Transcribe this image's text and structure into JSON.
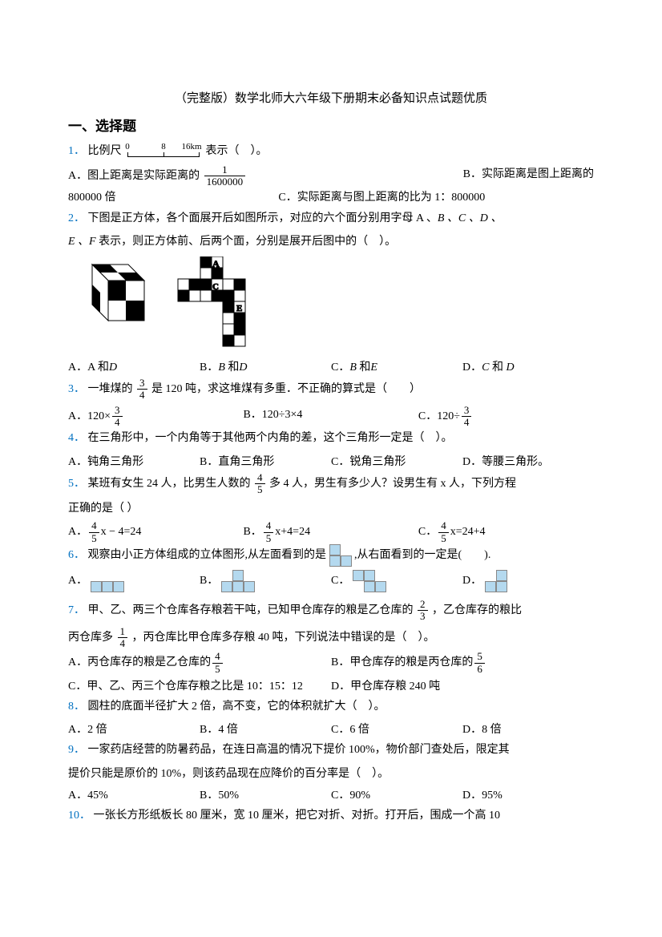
{
  "title": "（完整版）数学北师大六年级下册期末必备知识点试题优质",
  "sectionHeader": "一、选择题",
  "colors": {
    "qnum": "#0070c0",
    "text": "#000000",
    "cellFill": "#b4d9ef",
    "cellBorder": "#888888",
    "bg": "#ffffff"
  },
  "scale": {
    "labels": [
      "0",
      "8",
      "16km"
    ]
  },
  "q1": {
    "num": "1．",
    "text": "比例尺",
    "tail": "表示（　）。",
    "optA_pre": "A．图上距离是实际距离的",
    "optA_frac_num": "1",
    "optA_frac_den": "1600000",
    "optB": "B．实际距离是图上距离的",
    "line2_a": "800000 倍",
    "line2_b": "C．实际距离与图上距离的比为 1：800000"
  },
  "q2": {
    "num": "2．",
    "text1": "下图是正方体，各个面展开后如图所示，对应的六个面分别用字母 A 、",
    "text1_i": "B 、C 、D 、",
    "text2_i": "E 、F",
    "text2": " 表示，则正方体前、后两个面，分别是展开后图中的（　）。",
    "optA": "A．A 和",
    "optA_i": "D",
    "optB_pre": "B．",
    "optB_i": "B",
    "optB_mid": " 和",
    "optB_i2": "D",
    "optC_pre": "C．",
    "optC_i": "B",
    "optC_mid": " 和",
    "optC_i2": "E",
    "optD_pre": "D．",
    "optD_i": "C",
    "optD_mid": " 和 ",
    "optD_i2": "D"
  },
  "q3": {
    "num": "3．",
    "pre": "一堆煤的",
    "frac_num": "3",
    "frac_den": "4",
    "post": " 是 120 吨，求这堆煤有多重．不正确的算式是（　　）",
    "optA": "A．120×",
    "optB": "B．120÷3×4",
    "optC": "C．120÷"
  },
  "q4": {
    "num": "4．",
    "text": "在三角形中，一个内角等于其他两个内角的差，这个三角形一定是（　）。",
    "optA": "A．钝角三角形",
    "optB": "B．直角三角形",
    "optC": "C．锐角三角形",
    "optD": "D．等腰三角形。"
  },
  "q5": {
    "num": "5．",
    "pre": "某班有女生 24 人，比男生人数的",
    "frac_num": "4",
    "frac_den": "5",
    "post": "多 4 人，男生有多少人？设男生有 x 人，下列方程",
    "line2": "正确的是（ ）",
    "optA_pre": "A．",
    "optA_post": "x − 4=24",
    "optB_pre": "B．",
    "optB_post": "x+4=24",
    "optC_pre": "C．",
    "optC_post": "x=24+4"
  },
  "q6": {
    "num": "6．",
    "pre": "观察由小正方体组成的立体图形,从左面看到的是",
    "post": ",从右面看到的一定是(　　).",
    "optA": "A．",
    "optB": "B．",
    "optC": "C．",
    "optD": "D．",
    "front_shape": [
      [
        1,
        0
      ],
      [
        1,
        1
      ]
    ],
    "shapeA": [
      [
        0,
        0,
        0
      ],
      [
        1,
        1,
        1
      ]
    ],
    "shapeB": [
      [
        0,
        1,
        0
      ],
      [
        1,
        1,
        1
      ]
    ],
    "shapeC": [
      [
        1,
        1,
        0
      ],
      [
        0,
        1,
        1
      ]
    ],
    "shapeD": [
      [
        0,
        1
      ],
      [
        1,
        1
      ]
    ]
  },
  "q7": {
    "num": "7．",
    "pre": "甲、乙、两三个仓库各存粮若干吨，已知甲仓库存的粮是乙仓库的",
    "f1n": "2",
    "f1d": "3",
    "mid": "，乙仓库存的粮比",
    "line2a": "丙仓库多",
    "f2n": "1",
    "f2d": "4",
    "line2b": "，丙仓库比甲仓库多存粮 40 吨，下列说法中错误的是（　）。",
    "optA_pre": "A．丙仓库存的粮是乙仓库的",
    "fAn": "4",
    "fAd": "5",
    "optB_pre": "B．甲仓库存的粮是丙仓库的",
    "fBn": "5",
    "fBd": "6",
    "optC": "C．甲、乙、丙三个仓库存粮之比是 10：15：12",
    "optD": "D．甲仓库存粮 240 吨"
  },
  "q8": {
    "num": "8．",
    "text": "圆柱的底面半径扩大 2 倍，高不变，它的体积就扩大（　）。",
    "optA": "A．2 倍",
    "optB": "B．4 倍",
    "optC": "C．6 倍",
    "optD": "D．8 倍"
  },
  "q9": {
    "num": "9．",
    "text1": "一家药店经营的防暑药品，在连日高温的情况下提价 100%，物价部门查处后，限定其",
    "text2": "提价只能是原价的 10%，则该药品现在应降价的百分率是（　）。",
    "optA": "A．45%",
    "optB": "B．50%",
    "optC": "C．90%",
    "optD": "D．95%"
  },
  "q10": {
    "num": "10．",
    "text": "一张长方形纸板长 80 厘米，宽 10 厘米，把它对折、对折。打开后，围成一个高 10"
  }
}
